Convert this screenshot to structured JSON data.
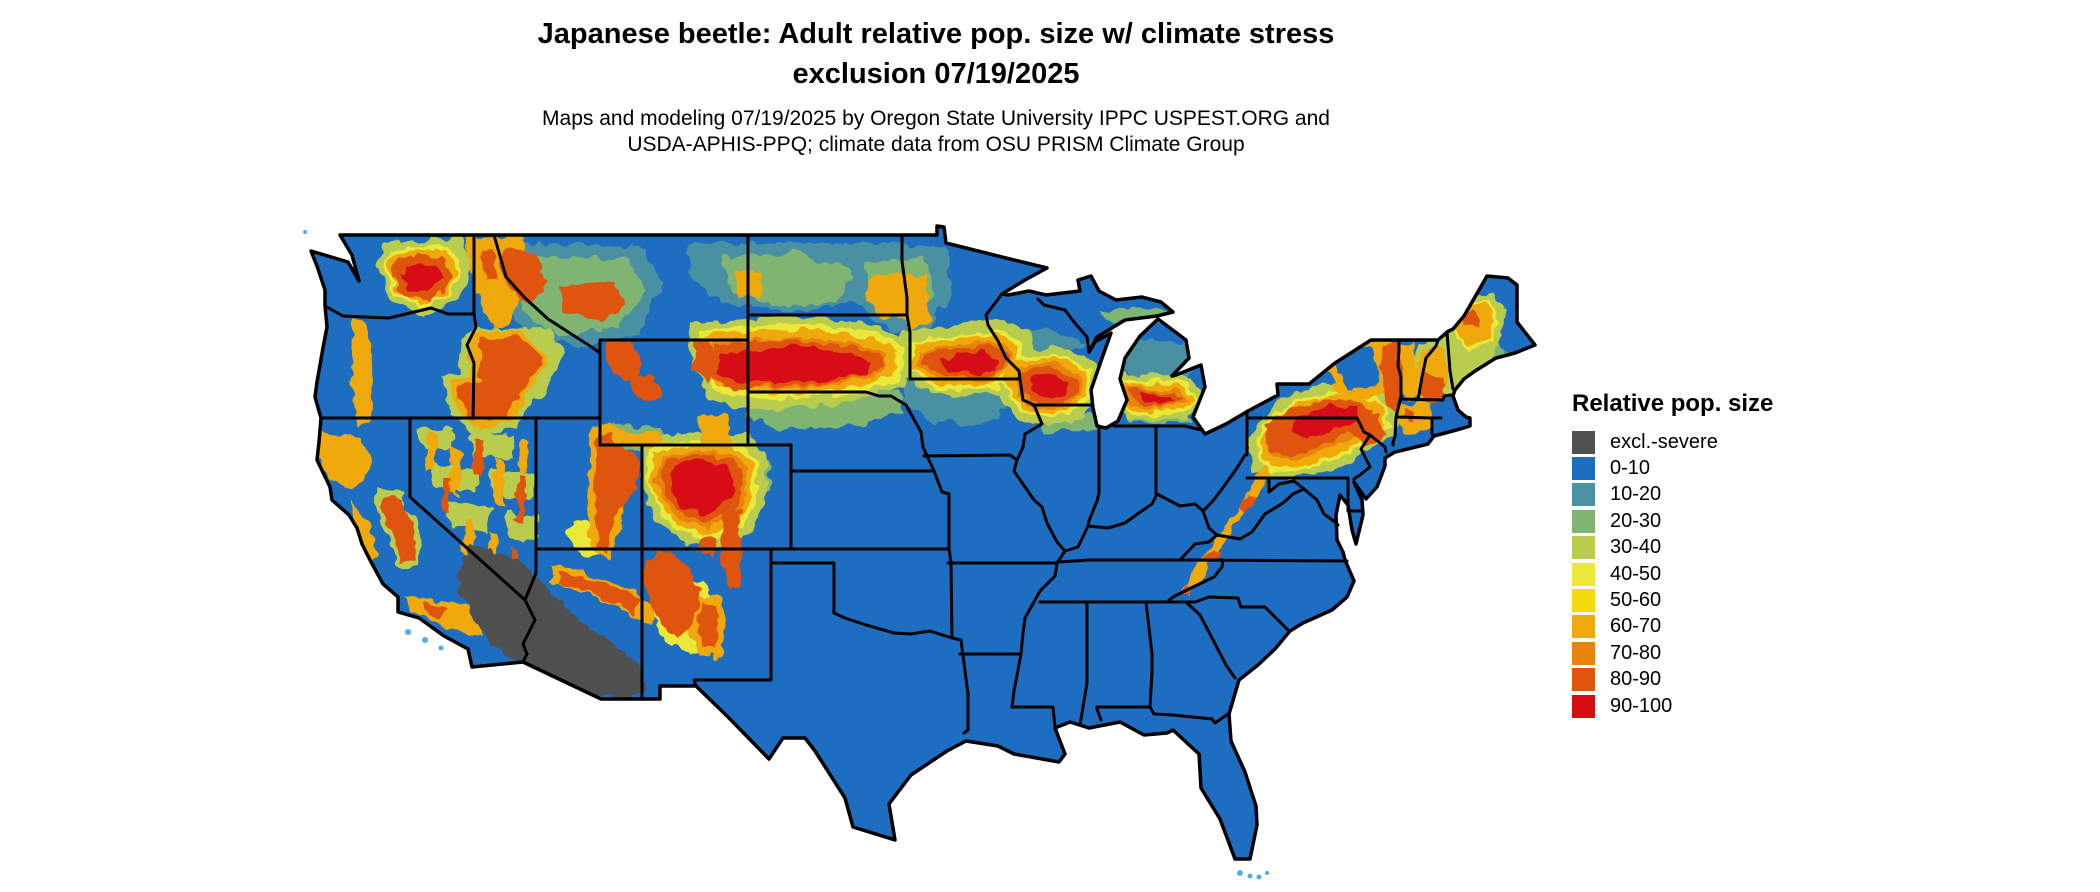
{
  "title": {
    "line1": "Japanese beetle: Adult relative pop. size w/ climate stress",
    "line2": "exclusion 07/19/2025"
  },
  "subtitle": {
    "line1": "Maps and modeling 07/19/2025 by Oregon State University IPPC USPEST.ORG and",
    "line2": "USDA-APHIS-PPQ; climate data from OSU PRISM Climate Group"
  },
  "legend": {
    "title": "Relative pop. size",
    "items": [
      {
        "label": "excl.-severe",
        "color_key": "excl_severe"
      },
      {
        "label": "0-10",
        "color_key": "c0_10"
      },
      {
        "label": "10-20",
        "color_key": "c10_20"
      },
      {
        "label": "20-30",
        "color_key": "c20_30"
      },
      {
        "label": "30-40",
        "color_key": "c30_40"
      },
      {
        "label": "40-50",
        "color_key": "c40_50"
      },
      {
        "label": "50-60",
        "color_key": "c50_60"
      },
      {
        "label": "60-70",
        "color_key": "c60_70"
      },
      {
        "label": "70-80",
        "color_key": "c70_80"
      },
      {
        "label": "80-90",
        "color_key": "c80_90"
      },
      {
        "label": "90-100",
        "color_key": "c90_100"
      }
    ]
  },
  "colors": {
    "excl_severe": "#505050",
    "c0_10": "#1d6ec1",
    "c10_20": "#4a91a2",
    "c20_30": "#7fb473",
    "c30_40": "#b9cc4d",
    "c40_50": "#eae839",
    "c50_60": "#f6d90d",
    "c60_70": "#efa90e",
    "c70_80": "#e8830e",
    "c80_90": "#e0540e",
    "c90_100": "#d60e12",
    "water_fringe": "#54a9e8",
    "state_border": "#000000",
    "background": "#ffffff"
  },
  "map": {
    "region": "Contiguous United States with state boundaries",
    "style": "raster heat map",
    "dominant_class": "0-10",
    "excluded_area": "southwestern deserts (southern Arizona, southeastern California, southern Nevada) shown as excl.-severe gray",
    "high_value_band": "northern plains through South Dakota, southern Minnesota, Wisconsin and central Michigan; northeast Wyoming; Colorado Rockies; Pennsylvania and southern New York; New England uplands; western mountain ranges"
  }
}
